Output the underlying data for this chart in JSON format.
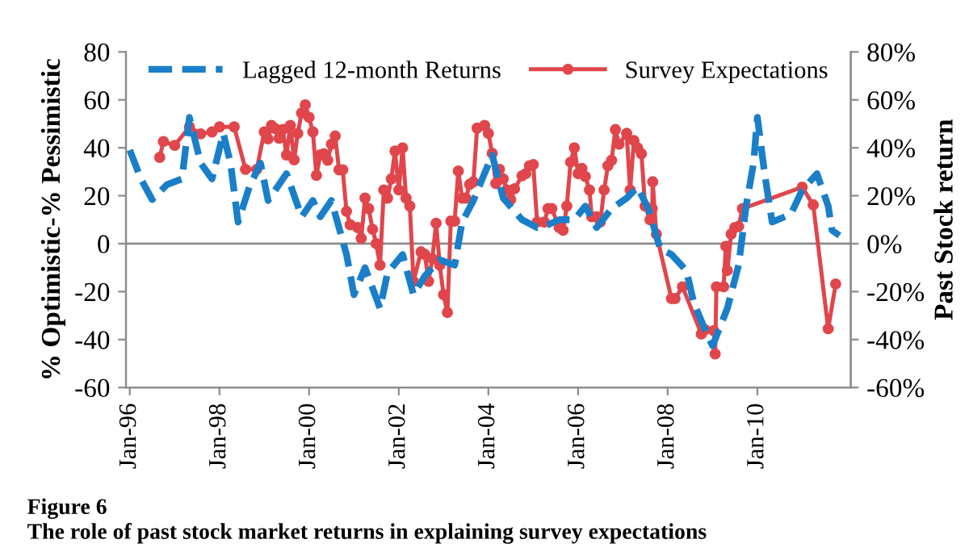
{
  "chart_data": {
    "type": "line",
    "ylabel": "% Optimistic-% Pessimistic",
    "y2label": "Past Stock return",
    "annotations": [
      "Figure 6",
      "The role of past stock market returns in explaining survey expectations"
    ],
    "xlim": [
      "1995-12",
      "2012-02"
    ],
    "xticks": [
      {
        "value": "1996-01",
        "label": "Jan-96"
      },
      {
        "value": "1998-01",
        "label": "Jan-98"
      },
      {
        "value": "2000-01",
        "label": "Jan-00"
      },
      {
        "value": "2002-01",
        "label": "Jan-02"
      },
      {
        "value": "2004-01",
        "label": "Jan-04"
      },
      {
        "value": "2006-01",
        "label": "Jan-06"
      },
      {
        "value": "2008-01",
        "label": "Jan-08"
      },
      {
        "value": "2010-01",
        "label": "Jan-10"
      }
    ],
    "ylim": [
      -60,
      80
    ],
    "yticks": [
      -60,
      -40,
      -20,
      0,
      20,
      40,
      60,
      80
    ],
    "y2lim": [
      -60,
      80
    ],
    "y2ticks": [
      {
        "value": -60,
        "label": "-60%"
      },
      {
        "value": -40,
        "label": "-40%"
      },
      {
        "value": -20,
        "label": "-20%"
      },
      {
        "value": 0,
        "label": "0%"
      },
      {
        "value": 20,
        "label": "20%"
      },
      {
        "value": 40,
        "label": "40%"
      },
      {
        "value": 60,
        "label": "60%"
      },
      {
        "value": 80,
        "label": "80%"
      }
    ],
    "ref_lines": [
      {
        "axis": "y",
        "value": 0,
        "color": "#8c8c8c"
      }
    ],
    "grid": false,
    "legend": "top",
    "series": [
      {
        "name": "Lagged 12-month Returns",
        "color": "#1a7fc9",
        "axis": "y2",
        "line_style": "dashed",
        "marker": "none",
        "x": [
          "1996-01",
          "1996-04",
          "1996-07",
          "1996-11",
          "1997-03",
          "1997-05",
          "1997-08",
          "1997-11",
          "1998-02",
          "1998-04",
          "1998-06",
          "1998-09",
          "1998-12",
          "1999-02",
          "1999-07",
          "1999-11",
          "2000-02",
          "2000-04",
          "2000-07",
          "2000-09",
          "2000-11",
          "2001-01",
          "2001-04",
          "2001-08",
          "2001-10",
          "2002-02",
          "2002-05",
          "2002-08",
          "2002-12",
          "2003-04",
          "2003-06",
          "2003-09",
          "2004-02",
          "2004-05",
          "2004-10",
          "2005-02",
          "2005-05",
          "2005-08",
          "2005-12",
          "2006-03",
          "2006-06",
          "2006-10",
          "2007-02",
          "2007-05",
          "2007-08",
          "2007-11",
          "2008-02",
          "2008-06",
          "2008-08",
          "2008-11",
          "2009-01",
          "2009-05",
          "2009-08",
          "2009-10",
          "2009-12",
          "2010-01",
          "2010-03",
          "2010-05",
          "2010-10",
          "2011-01",
          "2011-05",
          "2011-08",
          "2011-09",
          "2011-11"
        ],
        "values": [
          39,
          27,
          18.4,
          24.7,
          27,
          52.7,
          33.6,
          27,
          46,
          33.6,
          9,
          23.6,
          33.6,
          18,
          29.2,
          11.2,
          18,
          11.2,
          18,
          6.7,
          -4.5,
          -21.3,
          -10,
          -27,
          -12.3,
          -4.5,
          -21.3,
          -13.5,
          -6.7,
          -9,
          9,
          18,
          37,
          19,
          10,
          6.7,
          7.9,
          10,
          10,
          15.7,
          6.7,
          14.6,
          19,
          23.6,
          14,
          -2.2,
          -4.5,
          -11.2,
          -24.7,
          -35.9,
          -42.6,
          -27,
          -9,
          15.7,
          33.6,
          52.7,
          29.2,
          9,
          12.3,
          22.4,
          29.2,
          15.7,
          5.6,
          3.4
        ]
      },
      {
        "name": "Survey Expectations",
        "color": "#e0464b",
        "line_style": "solid",
        "marker": "circle",
        "x": [
          "1996-09",
          "1996-10",
          "1997-01",
          "1997-05",
          "1997-08",
          "1997-11",
          "1998-01",
          "1998-05",
          "1998-08",
          "1998-11",
          "1999-01",
          "1999-02",
          "1999-03",
          "1999-04",
          "1999-05",
          "1999-06",
          "1999-07",
          "1999-08",
          "1999-09",
          "1999-10",
          "1999-11",
          "1999-12",
          "2000-01",
          "2000-02",
          "2000-03",
          "2000-04",
          "2000-05",
          "2000-06",
          "2000-07",
          "2000-08",
          "2000-09",
          "2000-10",
          "2000-11",
          "2000-12",
          "2001-02",
          "2001-03",
          "2001-04",
          "2001-05",
          "2001-06",
          "2001-07",
          "2001-08",
          "2001-09",
          "2001-10",
          "2001-11",
          "2001-12",
          "2002-01",
          "2002-02",
          "2002-03",
          "2002-04",
          "2002-05",
          "2002-07",
          "2002-08",
          "2002-09",
          "2002-10",
          "2002-11",
          "2002-12",
          "2003-01",
          "2003-02",
          "2003-03",
          "2003-04",
          "2003-05",
          "2003-06",
          "2003-07",
          "2003-08",
          "2003-09",
          "2003-10",
          "2003-12",
          "2004-01",
          "2004-02",
          "2004-03",
          "2004-04",
          "2004-05",
          "2004-06",
          "2004-07",
          "2004-08",
          "2004-10",
          "2004-11",
          "2004-12",
          "2005-01",
          "2005-02",
          "2005-04",
          "2005-05",
          "2005-06",
          "2005-08",
          "2005-09",
          "2005-10",
          "2005-11",
          "2005-12",
          "2006-01",
          "2006-02",
          "2006-03",
          "2006-04-04",
          "2006-04-22",
          "2006-06",
          "2006-07",
          "2006-08",
          "2006-09",
          "2006-10",
          "2006-11",
          "2006-12",
          "2007-02",
          "2007-03",
          "2007-04",
          "2007-05",
          "2007-06",
          "2007-07",
          "2007-08-10",
          "2007-08-28",
          "2007-09",
          "2007-10",
          "2008-02",
          "2008-03",
          "2008-05",
          "2008-10",
          "2008-11",
          "2009-01-11",
          "2009-01-22",
          "2009-02",
          "2009-04-01",
          "2009-04-19",
          "2009-05",
          "2009-06",
          "2009-07",
          "2009-08",
          "2009-09",
          "2011-01",
          "2011-04",
          "2011-08",
          "2011-10"
        ],
        "values": [
          36,
          42.6,
          41,
          48.7,
          45.8,
          46.6,
          48.7,
          48.7,
          31,
          31,
          46.6,
          43.7,
          49.3,
          48,
          44,
          47.6,
          37,
          49.3,
          35,
          46,
          54.5,
          57.9,
          52.7,
          46.6,
          28.5,
          37,
          37.5,
          34.8,
          41.5,
          44.9,
          30.8,
          30.8,
          13.5,
          7.9,
          6.7,
          2.2,
          19,
          14.6,
          6,
          0,
          -9,
          22.4,
          19,
          27,
          38.6,
          22.4,
          40,
          19,
          15.7,
          -15.7,
          -3.4,
          -4.5,
          -15.7,
          -6.3,
          8.5,
          -9,
          -21.3,
          -28.7,
          9.4,
          9.4,
          30.3,
          19,
          19,
          24.7,
          25.8,
          48.2,
          49.3,
          46,
          37.7,
          25.1,
          31,
          27,
          22.4,
          18.4,
          22.9,
          28.3,
          29.2,
          32.5,
          33,
          9,
          9,
          14.6,
          14.6,
          6.7,
          5.6,
          15.7,
          34,
          40,
          29.2,
          31.4,
          28,
          22.4,
          11.2,
          11.2,
          9,
          22.4,
          32.5,
          34.8,
          47.6,
          41.5,
          46,
          22.4,
          43,
          40,
          37.5,
          15.7,
          10,
          14.6,
          25.8,
          4,
          -22.9,
          -22.9,
          -18,
          -37.7,
          -35.9,
          -36.3,
          -46,
          -18,
          -18,
          -1.1,
          -11.2,
          4,
          6.7,
          7.2,
          14.6,
          23.6,
          16.2,
          -35.5,
          -16.8
        ]
      }
    ]
  }
}
